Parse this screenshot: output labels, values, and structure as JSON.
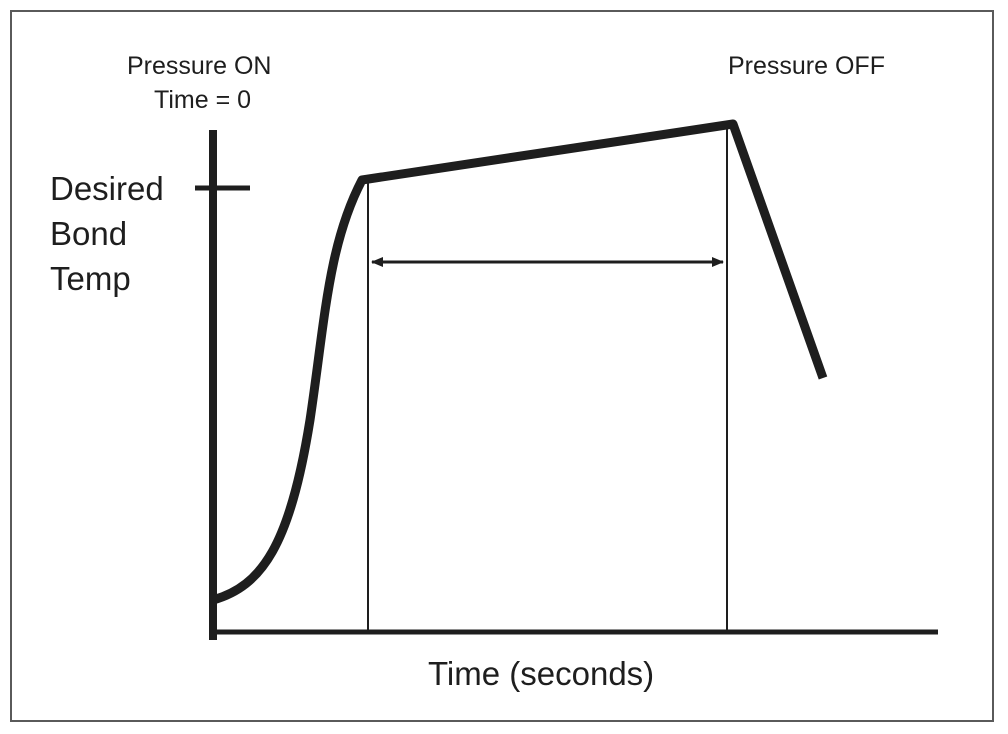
{
  "annotations": {
    "pressure_on": "Pressure ON",
    "time_zero": "Time = 0",
    "pressure_off": "Pressure OFF"
  },
  "y_axis": {
    "label_lines": [
      "Desired",
      "Bond",
      "Temp"
    ]
  },
  "x_axis": {
    "label": "Time (seconds)"
  },
  "colors": {
    "ink": "#1e1e1e",
    "frame": "#5a5a5a",
    "background": "#ffffff"
  }
}
